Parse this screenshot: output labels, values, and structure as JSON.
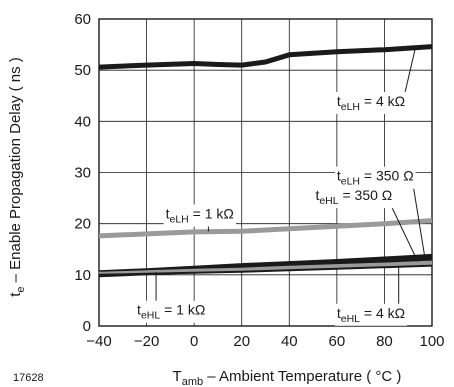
{
  "chart_data": {
    "type": "line",
    "xlabel": {
      "main": "T",
      "sub": "amb",
      "rest": " – Ambient Temperature ( °C )"
    },
    "ylabel": {
      "main": "t",
      "sub": "e",
      "rest": " – Enable Propagation Delay ( ns )"
    },
    "xlim": [
      -40,
      100
    ],
    "ylim": [
      0,
      60
    ],
    "xticks": [
      -40,
      -20,
      0,
      20,
      40,
      60,
      80,
      100
    ],
    "xtick_labels": [
      "−40",
      "−20",
      "0",
      "20",
      "40",
      "60",
      "80",
      "100"
    ],
    "yticks": [
      0,
      10,
      20,
      30,
      40,
      50,
      60
    ],
    "ytick_labels": [
      "0",
      "10",
      "20",
      "30",
      "40",
      "50",
      "60"
    ],
    "grid": true,
    "figure_id": "17628",
    "series": [
      {
        "id": "elh_4k",
        "color": "#1a1a1a",
        "weight": "thick",
        "x": [
          -40,
          -20,
          0,
          10,
          20,
          30,
          40,
          60,
          80,
          100
        ],
        "y": [
          50.6,
          51.0,
          51.3,
          51.1,
          51.0,
          51.6,
          53.0,
          53.6,
          54.0,
          54.6
        ]
      },
      {
        "id": "elh_1k",
        "color": "#9a9a9a",
        "weight": "thick",
        "x": [
          -40,
          -20,
          0,
          20,
          40,
          60,
          80,
          100
        ],
        "y": [
          17.6,
          18.0,
          18.4,
          18.5,
          19.0,
          19.5,
          20.0,
          20.6
        ]
      },
      {
        "id": "elh_350",
        "color": "#1a1a1a",
        "weight": "thick",
        "x": [
          -40,
          -20,
          0,
          20,
          40,
          60,
          80,
          100
        ],
        "y": [
          10.4,
          10.8,
          11.3,
          11.8,
          12.2,
          12.6,
          13.1,
          13.6
        ]
      },
      {
        "id": "ehl_350",
        "color": "#1a1a1a",
        "weight": "thick",
        "x": [
          -40,
          -20,
          0,
          20,
          40,
          60,
          80,
          100
        ],
        "y": [
          10.0,
          10.4,
          10.8,
          11.2,
          11.6,
          12.0,
          12.4,
          12.8
        ]
      },
      {
        "id": "ehl_1k",
        "color": "#9a9a9a",
        "weight": "medium",
        "x": [
          -40,
          -20,
          0,
          20,
          40,
          60,
          80,
          100
        ],
        "y": [
          10.2,
          10.5,
          10.8,
          11.0,
          11.4,
          11.7,
          12.0,
          12.4
        ]
      },
      {
        "id": "ehl_4k",
        "color": "#1a1a1a",
        "weight": "thin",
        "x": [
          -40,
          -20,
          0,
          20,
          40,
          60,
          80,
          100
        ],
        "y": [
          10.0,
          10.2,
          10.4,
          10.6,
          10.9,
          11.2,
          11.5,
          11.8
        ]
      }
    ],
    "annotations": [
      {
        "id": "elh_4k",
        "main": "t",
        "sub": "eLH",
        "rest": " = 4 kΩ",
        "x": 60,
        "y": 43.0,
        "point_x": 93,
        "point_y": 54.3
      },
      {
        "id": "elh_350",
        "main": "t",
        "sub": "eLH",
        "rest": " = 350 Ω",
        "x": 60,
        "y": 28.4,
        "point_x": 97,
        "point_y": 13.4
      },
      {
        "id": "ehl_350",
        "main": "t",
        "sub": "eHL",
        "rest": " = 350 Ω",
        "x": 51,
        "y": 24.6,
        "point_x": 94,
        "point_y": 12.6
      },
      {
        "id": "elh_1k",
        "main": "t",
        "sub": "eLH",
        "rest": " = 1 kΩ",
        "x": -12,
        "y": 21.0,
        "point_x": 6,
        "point_y": 18.5
      },
      {
        "id": "ehl_1k",
        "main": "t",
        "sub": "eHL",
        "rest": " = 1 kΩ",
        "x": -24,
        "y": 2.2,
        "point_x": -16,
        "point_y": 10.6
      },
      {
        "id": "ehl_4k",
        "main": "t",
        "sub": "eHL",
        "rest": " = 4 kΩ",
        "x": 60,
        "y": 1.6,
        "point_x": 86,
        "point_y": 11.6
      }
    ]
  }
}
